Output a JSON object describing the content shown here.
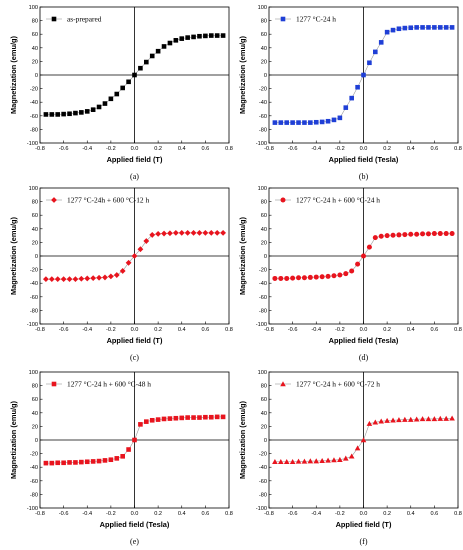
{
  "colors": {
    "black": "#000000",
    "blue": "#1f3fd6",
    "red": "#e8141e",
    "line": "#9a9a9a"
  },
  "chart_data": [
    {
      "type": "scatter",
      "panel_label": "(a)",
      "xlabel": "Applied field (T)",
      "ylabel": "Magnetization (emu/g)",
      "xlim": [
        -0.8,
        0.8
      ],
      "ylim": [
        -100,
        100
      ],
      "xticks": [
        "-0.8",
        "-0.6",
        "-0.4",
        "-0.2",
        "0.0",
        "0.2",
        "0.4",
        "0.6",
        "0.8"
      ],
      "yticks": [
        "-100",
        "-80",
        "-60",
        "-40",
        "-20",
        "0",
        "20",
        "40",
        "60",
        "80",
        "100"
      ],
      "marker": "square",
      "color": "#000000",
      "legend_position": "top-left",
      "series": [
        {
          "name": "as-prepared",
          "x": [
            -0.75,
            -0.7,
            -0.65,
            -0.6,
            -0.55,
            -0.5,
            -0.45,
            -0.4,
            -0.35,
            -0.3,
            -0.25,
            -0.2,
            -0.15,
            -0.1,
            -0.05,
            0.0,
            0.05,
            0.1,
            0.15,
            0.2,
            0.25,
            0.3,
            0.35,
            0.4,
            0.45,
            0.5,
            0.55,
            0.6,
            0.65,
            0.7,
            0.75
          ],
          "y": [
            -58,
            -58,
            -58,
            -57.5,
            -57,
            -56,
            -55,
            -53.5,
            -51,
            -47,
            -42,
            -35,
            -28,
            -19,
            -10,
            0,
            10,
            19,
            28,
            35,
            42,
            47,
            51,
            53.5,
            55,
            56,
            57,
            57.5,
            58,
            58,
            58
          ]
        }
      ]
    },
    {
      "type": "scatter",
      "panel_label": "(b)",
      "xlabel": "Applied field (Tesla)",
      "ylabel": "Magnetization (emu/g)",
      "xlim": [
        -0.8,
        0.8
      ],
      "ylim": [
        -100,
        100
      ],
      "xticks": [
        "-0.8",
        "-0.6",
        "-0.4",
        "-0.2",
        "0.0",
        "0.2",
        "0.4",
        "0.6",
        "0.8"
      ],
      "yticks": [
        "-100",
        "-80",
        "-60",
        "-40",
        "-20",
        "0",
        "20",
        "40",
        "60",
        "80",
        "100"
      ],
      "marker": "square",
      "color": "#1f3fd6",
      "legend_position": "top-left",
      "series": [
        {
          "name": "1277 °C-24 h",
          "x": [
            -0.75,
            -0.7,
            -0.65,
            -0.6,
            -0.55,
            -0.5,
            -0.45,
            -0.4,
            -0.35,
            -0.3,
            -0.25,
            -0.2,
            -0.15,
            -0.1,
            -0.05,
            0.0,
            0.05,
            0.1,
            0.15,
            0.2,
            0.25,
            0.3,
            0.35,
            0.4,
            0.45,
            0.5,
            0.55,
            0.6,
            0.65,
            0.7,
            0.75
          ],
          "y": [
            -70,
            -70,
            -70,
            -70,
            -70,
            -70,
            -70,
            -69.5,
            -69,
            -68,
            -66,
            -63,
            -48,
            -34,
            -18,
            0,
            18,
            34,
            48,
            63,
            66,
            68,
            69,
            69.5,
            70,
            70,
            70,
            70,
            70,
            70,
            70
          ]
        }
      ]
    },
    {
      "type": "scatter",
      "panel_label": "(c)",
      "xlabel": "Applied field (T)",
      "ylabel": "Magnetization (emu/g)",
      "xlim": [
        -0.8,
        0.8
      ],
      "ylim": [
        -100,
        100
      ],
      "xticks": [
        "-0.8",
        "-0.6",
        "-0.4",
        "-0.2",
        "0.0",
        "0.2",
        "0.4",
        "0.6",
        "0.8"
      ],
      "yticks": [
        "-100",
        "-80",
        "-60",
        "-40",
        "-20",
        "0",
        "20",
        "40",
        "60",
        "80",
        "100"
      ],
      "marker": "diamond",
      "color": "#e8141e",
      "legend_position": "top-left",
      "series": [
        {
          "name": "1277 °C-24h + 600 °C-12 h",
          "x": [
            -0.75,
            -0.7,
            -0.65,
            -0.6,
            -0.55,
            -0.5,
            -0.45,
            -0.4,
            -0.35,
            -0.3,
            -0.25,
            -0.2,
            -0.15,
            -0.1,
            -0.05,
            0.0,
            0.05,
            0.1,
            0.15,
            0.2,
            0.25,
            0.3,
            0.35,
            0.4,
            0.45,
            0.5,
            0.55,
            0.6,
            0.65,
            0.7,
            0.75
          ],
          "y": [
            -34,
            -34,
            -34,
            -34,
            -34,
            -34,
            -33.5,
            -33,
            -32.5,
            -32,
            -31.5,
            -30,
            -28,
            -22,
            -10,
            0,
            10,
            22,
            31,
            32.5,
            33,
            33.5,
            34,
            34,
            34,
            34,
            34,
            34,
            34,
            34,
            34
          ]
        }
      ]
    },
    {
      "type": "scatter",
      "panel_label": "(d)",
      "xlabel": "Applied field (Tesla)",
      "ylabel": "Magnetization (emu/g)",
      "xlim": [
        -0.8,
        0.8
      ],
      "ylim": [
        -100,
        100
      ],
      "xticks": [
        "-0.8",
        "-0.6",
        "-0.4",
        "-0.2",
        "0.0",
        "0.2",
        "0.4",
        "0.6",
        "0.8"
      ],
      "yticks": [
        "-100",
        "-80",
        "-60",
        "-40",
        "-20",
        "0",
        "20",
        "40",
        "60",
        "80",
        "100"
      ],
      "marker": "circle",
      "color": "#e8141e",
      "legend_position": "top-left",
      "series": [
        {
          "name": "1277 °C-24 h + 600 °C-24 h",
          "x": [
            -0.75,
            -0.7,
            -0.65,
            -0.6,
            -0.55,
            -0.5,
            -0.45,
            -0.4,
            -0.35,
            -0.3,
            -0.25,
            -0.2,
            -0.15,
            -0.1,
            -0.05,
            0.0,
            0.05,
            0.1,
            0.15,
            0.2,
            0.25,
            0.3,
            0.35,
            0.4,
            0.45,
            0.5,
            0.55,
            0.6,
            0.65,
            0.7,
            0.75
          ],
          "y": [
            -33,
            -33,
            -33,
            -32.5,
            -32,
            -32,
            -31.5,
            -31,
            -30.5,
            -30,
            -29,
            -28,
            -26,
            -22,
            -12,
            0,
            13,
            27,
            29,
            30,
            30.5,
            31,
            31.5,
            32,
            32,
            32.5,
            32.5,
            33,
            33,
            33,
            33
          ]
        }
      ]
    },
    {
      "type": "scatter",
      "panel_label": "(e)",
      "xlabel": "Applied field (Tesla)",
      "ylabel": "Magnetization (emu/g)",
      "xlim": [
        -0.8,
        0.8
      ],
      "ylim": [
        -100,
        100
      ],
      "xticks": [
        "-0.8",
        "-0.6",
        "-0.4",
        "-0.2",
        "0.0",
        "0.2",
        "0.4",
        "0.6",
        "0.8"
      ],
      "yticks": [
        "-100",
        "-80",
        "-60",
        "-40",
        "-20",
        "0",
        "20",
        "40",
        "60",
        "80",
        "100"
      ],
      "marker": "square",
      "color": "#e8141e",
      "legend_position": "top-left",
      "series": [
        {
          "name": "1277 °C-24 h + 600 °C-48 h",
          "x": [
            -0.75,
            -0.7,
            -0.65,
            -0.6,
            -0.55,
            -0.5,
            -0.45,
            -0.4,
            -0.35,
            -0.3,
            -0.25,
            -0.2,
            -0.15,
            -0.1,
            -0.05,
            0.0,
            0.05,
            0.1,
            0.15,
            0.2,
            0.25,
            0.3,
            0.35,
            0.4,
            0.45,
            0.5,
            0.55,
            0.6,
            0.65,
            0.7,
            0.75
          ],
          "y": [
            -34,
            -34,
            -33.5,
            -33.5,
            -33,
            -33,
            -32.5,
            -32,
            -31.5,
            -31,
            -30,
            -29,
            -27,
            -24,
            -14,
            0,
            23,
            27,
            29,
            30,
            31,
            31.5,
            32,
            32.5,
            33,
            33,
            33,
            33.5,
            33.5,
            34,
            34
          ]
        }
      ]
    },
    {
      "type": "scatter",
      "panel_label": "(f)",
      "xlabel": "Applied field (T)",
      "ylabel": "Magnetization (emu/g)",
      "xlim": [
        -0.8,
        0.8
      ],
      "ylim": [
        -100,
        100
      ],
      "xticks": [
        "-0.8",
        "-0.6",
        "-0.4",
        "-0.2",
        "0.0",
        "0.2",
        "0.4",
        "0.6",
        "0.8"
      ],
      "yticks": [
        "-100",
        "-80",
        "-60",
        "-40",
        "-20",
        "0",
        "20",
        "40",
        "60",
        "80",
        "100"
      ],
      "marker": "triangle",
      "color": "#e8141e",
      "legend_position": "top-left",
      "series": [
        {
          "name": "1277 °C-24 h + 600 °C-72 h",
          "x": [
            -0.75,
            -0.7,
            -0.65,
            -0.6,
            -0.55,
            -0.5,
            -0.45,
            -0.4,
            -0.35,
            -0.3,
            -0.25,
            -0.2,
            -0.15,
            -0.1,
            -0.05,
            0.0,
            0.05,
            0.1,
            0.15,
            0.2,
            0.25,
            0.3,
            0.35,
            0.4,
            0.45,
            0.5,
            0.55,
            0.6,
            0.65,
            0.7,
            0.75
          ],
          "y": [
            -32,
            -32,
            -32,
            -32,
            -31.5,
            -31.5,
            -31,
            -31,
            -30.5,
            -30,
            -29.5,
            -29,
            -27,
            -24,
            -12,
            0,
            24,
            26,
            27.5,
            28.5,
            29,
            29.5,
            30,
            30,
            30.5,
            31,
            31,
            31,
            31.5,
            31.5,
            32
          ]
        }
      ]
    }
  ]
}
